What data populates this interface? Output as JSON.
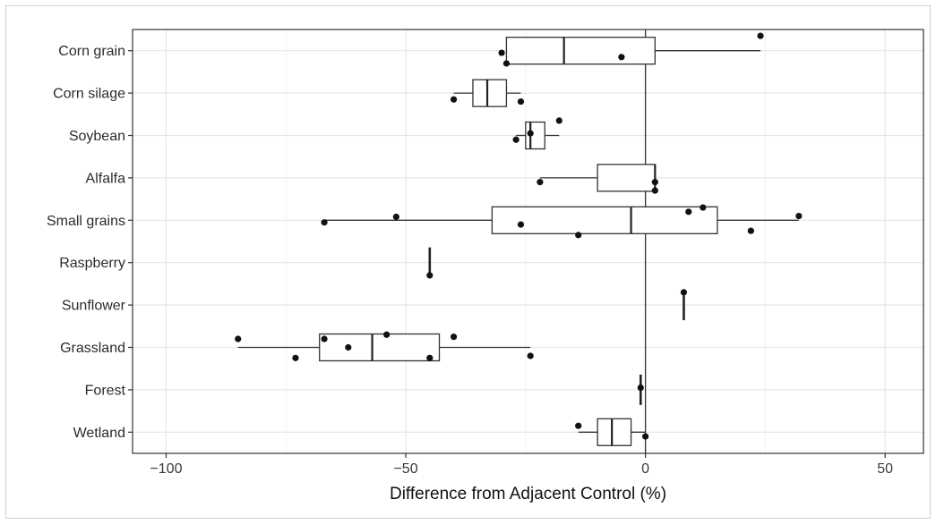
{
  "chart_data": {
    "type": "boxplot",
    "xlabel": "Difference from Adjacent Control (%)",
    "ylabel": "",
    "xlim": [
      -107,
      58
    ],
    "xticks": [
      -100,
      -50,
      0,
      50
    ],
    "grid": true,
    "reference_line_x": 0,
    "categories": [
      "Corn grain",
      "Corn silage",
      "Soybean",
      "Alfalfa",
      "Small grains",
      "Raspberry",
      "Sunflower",
      "Grassland",
      "Forest",
      "Wetland"
    ],
    "boxes": [
      {
        "category": "Corn grain",
        "whisker_low": -29,
        "q1": -29,
        "median": -17,
        "q3": 2,
        "whisker_high": 24
      },
      {
        "category": "Corn silage",
        "whisker_low": -40,
        "q1": -36,
        "median": -33,
        "q3": -29,
        "whisker_high": -26
      },
      {
        "category": "Soybean",
        "whisker_low": -27,
        "q1": -25,
        "median": -24,
        "q3": -21,
        "whisker_high": -18
      },
      {
        "category": "Alfalfa",
        "whisker_low": -22,
        "q1": -10,
        "median": 2,
        "q3": 2,
        "whisker_high": 2
      },
      {
        "category": "Small grains",
        "whisker_low": -67,
        "q1": -32,
        "median": -3,
        "q3": 15,
        "whisker_high": 32
      },
      {
        "category": "Raspberry",
        "whisker_low": -45,
        "q1": -45,
        "median": -45,
        "q3": -45,
        "whisker_high": -45
      },
      {
        "category": "Sunflower",
        "whisker_low": 8,
        "q1": 8,
        "median": 8,
        "q3": 8,
        "whisker_high": 8
      },
      {
        "category": "Grassland",
        "whisker_low": -85,
        "q1": -68,
        "median": -57,
        "q3": -43,
        "whisker_high": -24
      },
      {
        "category": "Forest",
        "whisker_low": -1,
        "q1": -1,
        "median": -1,
        "q3": -1,
        "whisker_high": -1
      },
      {
        "category": "Wetland",
        "whisker_low": -14,
        "q1": -10,
        "median": -7,
        "q3": -3,
        "whisker_high": 0
      }
    ],
    "points": [
      {
        "category": "Corn grain",
        "x": 24,
        "offset": -0.35
      },
      {
        "category": "Corn grain",
        "x": -30,
        "offset": 0.05
      },
      {
        "category": "Corn grain",
        "x": -29,
        "offset": 0.3
      },
      {
        "category": "Corn grain",
        "x": -5,
        "offset": 0.15
      },
      {
        "category": "Corn silage",
        "x": -40,
        "offset": 0.15
      },
      {
        "category": "Corn silage",
        "x": -26,
        "offset": 0.2
      },
      {
        "category": "Soybean",
        "x": -18,
        "offset": -0.35
      },
      {
        "category": "Soybean",
        "x": -24,
        "offset": -0.05
      },
      {
        "category": "Soybean",
        "x": -27,
        "offset": 0.1
      },
      {
        "category": "Alfalfa",
        "x": -22,
        "offset": 0.1
      },
      {
        "category": "Alfalfa",
        "x": 2,
        "offset": 0.1
      },
      {
        "category": "Alfalfa",
        "x": 2,
        "offset": 0.3
      },
      {
        "category": "Small grains",
        "x": 32,
        "offset": -0.1
      },
      {
        "category": "Small grains",
        "x": 12,
        "offset": -0.3
      },
      {
        "category": "Small grains",
        "x": 9,
        "offset": -0.2
      },
      {
        "category": "Small grains",
        "x": -52,
        "offset": -0.08
      },
      {
        "category": "Small grains",
        "x": -67,
        "offset": 0.05
      },
      {
        "category": "Small grains",
        "x": -26,
        "offset": 0.1
      },
      {
        "category": "Small grains",
        "x": 22,
        "offset": 0.25
      },
      {
        "category": "Small grains",
        "x": -14,
        "offset": 0.35
      },
      {
        "category": "Raspberry",
        "x": -45,
        "offset": 0.3
      },
      {
        "category": "Sunflower",
        "x": 8,
        "offset": -0.3
      },
      {
        "category": "Grassland",
        "x": -85,
        "offset": -0.2
      },
      {
        "category": "Grassland",
        "x": -67,
        "offset": -0.2
      },
      {
        "category": "Grassland",
        "x": -54,
        "offset": -0.3
      },
      {
        "category": "Grassland",
        "x": -40,
        "offset": -0.25
      },
      {
        "category": "Grassland",
        "x": -62,
        "offset": 0.0
      },
      {
        "category": "Grassland",
        "x": -73,
        "offset": 0.25
      },
      {
        "category": "Grassland",
        "x": -45,
        "offset": 0.25
      },
      {
        "category": "Grassland",
        "x": -24,
        "offset": 0.2
      },
      {
        "category": "Forest",
        "x": -1,
        "offset": -0.05
      },
      {
        "category": "Wetland",
        "x": -14,
        "offset": -0.15
      },
      {
        "category": "Wetland",
        "x": 0,
        "offset": 0.1
      }
    ]
  }
}
